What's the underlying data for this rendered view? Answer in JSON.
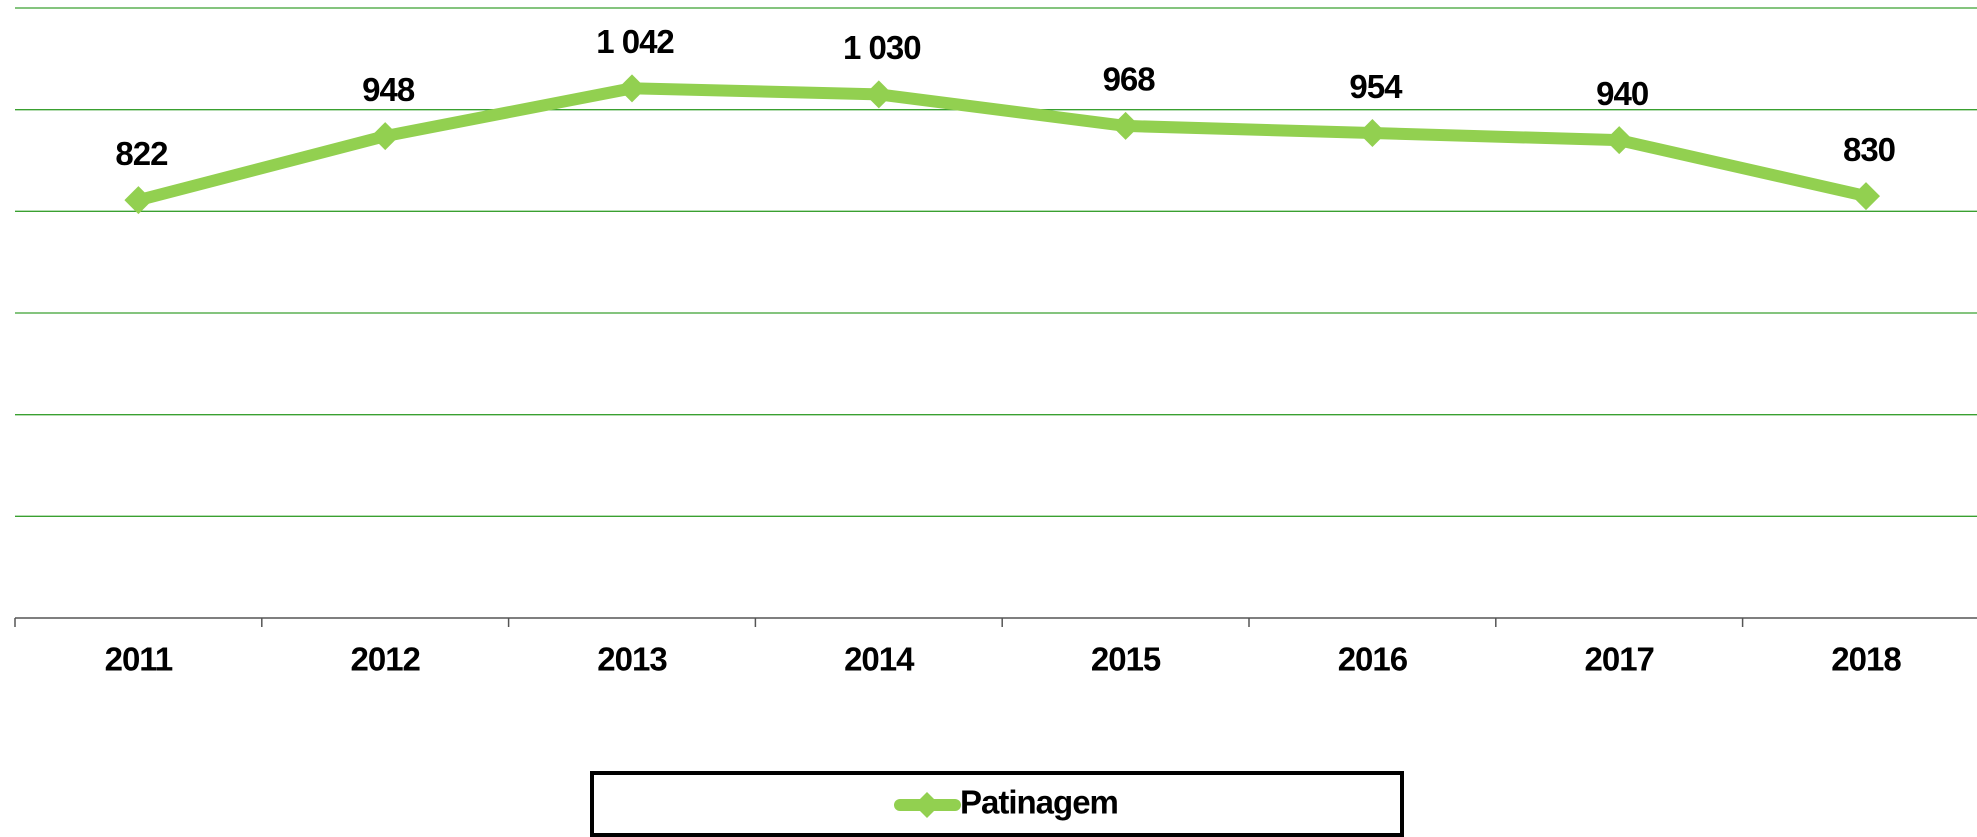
{
  "chart_data": {
    "type": "line",
    "categories": [
      "2011",
      "2012",
      "2013",
      "2014",
      "2015",
      "2016",
      "2017",
      "2018"
    ],
    "series": [
      {
        "name": "Patinagem",
        "color": "#92d050",
        "values": [
          822,
          948,
          1042,
          1030,
          968,
          954,
          940,
          830
        ],
        "value_labels": [
          "822",
          "948",
          "1 042",
          "1 030",
          "968",
          "954",
          "940",
          "830"
        ]
      }
    ],
    "ylim": [
      0,
      1200
    ],
    "yticks": [
      0,
      200,
      400,
      600,
      800,
      1000,
      1200
    ],
    "grid": true,
    "grid_color": "#3aa030",
    "legend": "bottom"
  }
}
